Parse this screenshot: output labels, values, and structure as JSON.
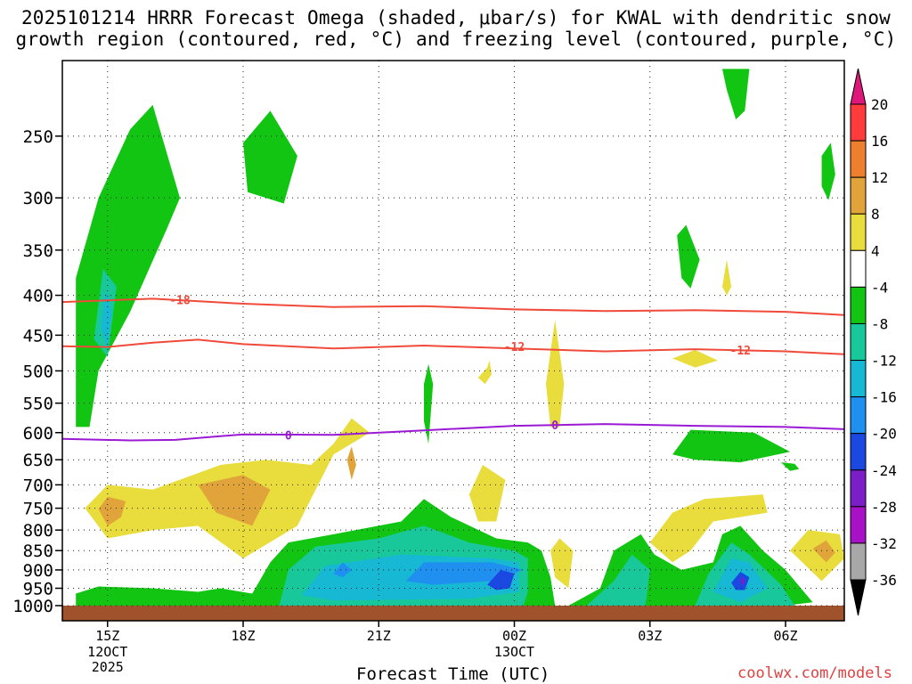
{
  "title_line1": "2025101214 HRRR Forecast Omega (shaded, μbar/s) for KWAL with dendritic snow",
  "title_line2": "growth region (contoured, red, °C) and freezing level (contoured, purple, °C)",
  "credit": "coolwx.com/models",
  "chart_data": {
    "type": "heatmap",
    "title": "2025101214 HRRR Forecast Omega (shaded, μbar/s) for KWAL with dendritic snow growth region (contoured, red, °C) and freezing level (contoured, purple, °C)",
    "xlabel": "Forecast Time (UTC)",
    "ylabel": "",
    "x_ticks": [
      {
        "label": "15Z",
        "sub": [
          "12OCT",
          "2025"
        ],
        "hour": 1
      },
      {
        "label": "18Z",
        "sub": [],
        "hour": 4
      },
      {
        "label": "21Z",
        "sub": [],
        "hour": 7
      },
      {
        "label": "00Z",
        "sub": [
          "13OCT"
        ],
        "hour": 10
      },
      {
        "label": "03Z",
        "sub": [],
        "hour": 13
      },
      {
        "label": "06Z",
        "sub": [],
        "hour": 16
      }
    ],
    "xlim": [
      0,
      17.3
    ],
    "y_ticks": [
      250,
      300,
      350,
      400,
      450,
      500,
      550,
      600,
      650,
      700,
      750,
      800,
      850,
      900,
      950,
      1000
    ],
    "ylim_hpa": [
      200,
      1000
    ],
    "y_scale": "log-pressure",
    "grid": true,
    "colorbar": {
      "labels": [
        "20",
        "16",
        "12",
        "8",
        "4",
        "-4",
        "-8",
        "-12",
        "-16",
        "-20",
        "-24",
        "-28",
        "-32",
        "-36"
      ],
      "colors": [
        "#ff3b3b",
        "#ee7f2e",
        "#e0a43b",
        "#e8dd3c",
        "#ffffff",
        "#12c512",
        "#18c89a",
        "#16b8d4",
        "#1f8ff0",
        "#1a48e0",
        "#7a1ec8",
        "#a812c6",
        "#a8a8a8"
      ],
      "top_arrow_color": "#e0177a",
      "bottom_arrow_color": "#000000"
    },
    "dendritic_isotherms": [
      {
        "value": -18,
        "label": "-18",
        "color": "#f04a3a",
        "points": [
          [
            0,
            408
          ],
          [
            1,
            406
          ],
          [
            2,
            404
          ],
          [
            4,
            410
          ],
          [
            6,
            414
          ],
          [
            8,
            413
          ],
          [
            10,
            417
          ],
          [
            12,
            419
          ],
          [
            14,
            418
          ],
          [
            16,
            420
          ],
          [
            17.3,
            424
          ]
        ]
      },
      {
        "value": -12,
        "label": "-12",
        "color": "#f04a3a",
        "points": [
          [
            0,
            465
          ],
          [
            1,
            466
          ],
          [
            2,
            460
          ],
          [
            3,
            456
          ],
          [
            4,
            462
          ],
          [
            6,
            468
          ],
          [
            8,
            464
          ],
          [
            10,
            468
          ],
          [
            12,
            472
          ],
          [
            14,
            469
          ],
          [
            16,
            472
          ],
          [
            17.3,
            476
          ]
        ]
      }
    ],
    "freezing_level": {
      "value": 0,
      "label": "0",
      "color": "#9a1ad4",
      "points": [
        [
          0,
          611
        ],
        [
          1.5,
          614
        ],
        [
          2.5,
          613
        ],
        [
          4,
          603
        ],
        [
          6,
          604
        ],
        [
          8,
          596
        ],
        [
          10,
          588
        ],
        [
          12,
          585
        ],
        [
          14,
          588
        ],
        [
          16,
          590
        ],
        [
          17.3,
          594
        ]
      ]
    },
    "omega_regions": [
      {
        "level": "-4",
        "pts": [
          [
            0.3,
            590
          ],
          [
            0.3,
            380
          ],
          [
            0.8,
            300
          ],
          [
            1.5,
            245
          ],
          [
            2,
            228
          ],
          [
            2.6,
            300
          ],
          [
            2.3,
            330
          ],
          [
            1.5,
            420
          ],
          [
            0.8,
            500
          ],
          [
            0.6,
            590
          ]
        ]
      },
      {
        "level": "-8",
        "pts": [
          [
            0.7,
            455
          ],
          [
            0.9,
            370
          ],
          [
            1.2,
            390
          ],
          [
            1.0,
            480
          ]
        ]
      },
      {
        "level": "-12",
        "pts": [
          [
            0.85,
            440
          ],
          [
            0.95,
            395
          ],
          [
            1.1,
            420
          ],
          [
            1.0,
            470
          ]
        ]
      },
      {
        "level": "-4",
        "pts": [
          [
            4,
            255
          ],
          [
            4.6,
            232
          ],
          [
            5.2,
            265
          ],
          [
            4.9,
            305
          ],
          [
            4.1,
            295
          ]
        ]
      },
      {
        "level": "-4",
        "pts": [
          [
            14.6,
            205
          ],
          [
            15.2,
            205
          ],
          [
            15.1,
            232
          ],
          [
            14.9,
            238
          ],
          [
            14.7,
            218
          ]
        ]
      },
      {
        "level": "-4",
        "pts": [
          [
            16.8,
            265
          ],
          [
            17,
            255
          ],
          [
            17.1,
            280
          ],
          [
            16.95,
            302
          ],
          [
            16.8,
            290
          ]
        ]
      },
      {
        "level": "-4",
        "pts": [
          [
            13.6,
            335
          ],
          [
            13.8,
            325
          ],
          [
            14.1,
            360
          ],
          [
            13.9,
            392
          ],
          [
            13.7,
            380
          ]
        ]
      },
      {
        "level": "-4",
        "pts": [
          [
            8.0,
            520
          ],
          [
            8.1,
            490
          ],
          [
            8.2,
            520
          ],
          [
            8.1,
            620
          ],
          [
            8.0,
            580
          ]
        ]
      },
      {
        "level": "-4",
        "pts": [
          [
            13.5,
            640
          ],
          [
            13.9,
            595
          ],
          [
            15.3,
            600
          ],
          [
            16.1,
            635
          ],
          [
            15.0,
            655
          ],
          [
            14.0,
            650
          ]
        ]
      },
      {
        "level": "-4",
        "pts": [
          [
            15.9,
            655
          ],
          [
            16.2,
            658
          ],
          [
            16.3,
            668
          ],
          [
            16.1,
            672
          ]
        ]
      },
      {
        "level": "4",
        "pts": [
          [
            0.5,
            750
          ],
          [
            1.0,
            700
          ],
          [
            2.0,
            710
          ],
          [
            3.5,
            660
          ],
          [
            4.5,
            650
          ],
          [
            5.5,
            660
          ],
          [
            6.0,
            620
          ],
          [
            6.4,
            575
          ],
          [
            6.8,
            600
          ],
          [
            6.0,
            640
          ],
          [
            5.2,
            790
          ],
          [
            4.0,
            870
          ],
          [
            3.0,
            790
          ],
          [
            2.0,
            800
          ],
          [
            1.0,
            820
          ]
        ]
      },
      {
        "level": "8",
        "pts": [
          [
            0.8,
            752
          ],
          [
            1.0,
            725
          ],
          [
            1.4,
            735
          ],
          [
            1.3,
            770
          ],
          [
            1.0,
            790
          ]
        ]
      },
      {
        "level": "8",
        "pts": [
          [
            3.0,
            700
          ],
          [
            4.0,
            680
          ],
          [
            4.6,
            710
          ],
          [
            4.2,
            790
          ],
          [
            3.4,
            760
          ]
        ]
      },
      {
        "level": "8",
        "pts": [
          [
            6.3,
            650
          ],
          [
            6.4,
            625
          ],
          [
            6.5,
            660
          ],
          [
            6.4,
            690
          ]
        ]
      },
      {
        "level": "4",
        "pts": [
          [
            9.0,
            720
          ],
          [
            9.3,
            660
          ],
          [
            9.8,
            690
          ],
          [
            9.6,
            780
          ],
          [
            9.2,
            780
          ]
        ]
      },
      {
        "level": "4",
        "pts": [
          [
            9.2,
            510
          ],
          [
            9.4,
            495
          ],
          [
            9.45,
            485
          ],
          [
            9.5,
            505
          ],
          [
            9.35,
            520
          ]
        ]
      },
      {
        "level": "4",
        "pts": [
          [
            10.7,
            520
          ],
          [
            10.9,
            430
          ],
          [
            11.1,
            520
          ],
          [
            11.0,
            590
          ],
          [
            10.8,
            590
          ]
        ]
      },
      {
        "level": "4",
        "pts": [
          [
            10.8,
            850
          ],
          [
            11.0,
            820
          ],
          [
            11.3,
            850
          ],
          [
            11.2,
            950
          ],
          [
            10.9,
            920
          ]
        ]
      },
      {
        "level": "4",
        "pts": [
          [
            13.0,
            830
          ],
          [
            13.5,
            760
          ],
          [
            14.2,
            730
          ],
          [
            15.5,
            720
          ],
          [
            15.6,
            760
          ],
          [
            14.4,
            780
          ],
          [
            13.9,
            850
          ],
          [
            13.5,
            880
          ]
        ]
      },
      {
        "level": "4",
        "pts": [
          [
            13.5,
            482
          ],
          [
            14.0,
            470
          ],
          [
            14.5,
            485
          ],
          [
            14.0,
            495
          ]
        ]
      },
      {
        "level": "4",
        "pts": [
          [
            14.6,
            390
          ],
          [
            14.7,
            360
          ],
          [
            14.8,
            390
          ],
          [
            14.7,
            400
          ]
        ]
      },
      {
        "level": "4",
        "pts": [
          [
            16.1,
            850
          ],
          [
            16.5,
            800
          ],
          [
            17.2,
            810
          ],
          [
            17.3,
            870
          ],
          [
            16.8,
            930
          ]
        ]
      },
      {
        "level": "8",
        "pts": [
          [
            16.6,
            845
          ],
          [
            16.9,
            825
          ],
          [
            17.1,
            855
          ],
          [
            16.9,
            880
          ]
        ]
      },
      {
        "level": "-4",
        "pts": [
          [
            0.3,
            965
          ],
          [
            0.8,
            945
          ],
          [
            2.0,
            950
          ],
          [
            3.0,
            960
          ],
          [
            3.5,
            950
          ],
          [
            4.2,
            965
          ],
          [
            4.6,
            880
          ],
          [
            5.0,
            830
          ],
          [
            6.0,
            810
          ],
          [
            7.5,
            780
          ],
          [
            8.0,
            730
          ],
          [
            8.6,
            770
          ],
          [
            9.6,
            820
          ],
          [
            10.3,
            830
          ],
          [
            10.6,
            850
          ],
          [
            10.8,
            920
          ],
          [
            10.9,
            1000
          ],
          [
            0.3,
            1000
          ]
        ]
      },
      {
        "level": "-8",
        "pts": [
          [
            4.8,
            1000
          ],
          [
            5.0,
            900
          ],
          [
            5.6,
            840
          ],
          [
            7.0,
            820
          ],
          [
            8.0,
            790
          ],
          [
            9.0,
            830
          ],
          [
            10.0,
            850
          ],
          [
            10.3,
            870
          ],
          [
            10.3,
            960
          ],
          [
            10.2,
            1000
          ]
        ]
      },
      {
        "level": "-12",
        "pts": [
          [
            5.3,
            970
          ],
          [
            5.8,
            890
          ],
          [
            7.5,
            860
          ],
          [
            9.5,
            870
          ],
          [
            10.1,
            880
          ],
          [
            10.1,
            960
          ],
          [
            9.0,
            980
          ],
          [
            6.0,
            985
          ]
        ]
      },
      {
        "level": "-16",
        "pts": [
          [
            7.6,
            930
          ],
          [
            8.0,
            880
          ],
          [
            9.5,
            880
          ],
          [
            10.2,
            900
          ],
          [
            9.5,
            930
          ],
          [
            8.2,
            940
          ]
        ]
      },
      {
        "level": "-20",
        "pts": [
          [
            9.4,
            940
          ],
          [
            9.7,
            900
          ],
          [
            10.0,
            910
          ],
          [
            9.9,
            950
          ],
          [
            9.6,
            955
          ]
        ]
      },
      {
        "level": "-16",
        "pts": [
          [
            6.0,
            910
          ],
          [
            6.2,
            880
          ],
          [
            6.4,
            900
          ],
          [
            6.2,
            920
          ]
        ]
      },
      {
        "level": "-4",
        "pts": [
          [
            11.2,
            1000
          ],
          [
            11.9,
            950
          ],
          [
            12.2,
            850
          ],
          [
            12.8,
            810
          ],
          [
            13.1,
            860
          ],
          [
            13.7,
            900
          ],
          [
            14.4,
            880
          ],
          [
            14.6,
            810
          ],
          [
            15.0,
            790
          ],
          [
            15.5,
            850
          ],
          [
            16.0,
            900
          ],
          [
            16.6,
            990
          ],
          [
            16.0,
            1000
          ]
        ]
      },
      {
        "level": "-8",
        "pts": [
          [
            11.6,
            1000
          ],
          [
            12.2,
            930
          ],
          [
            12.6,
            860
          ],
          [
            13.0,
            900
          ],
          [
            12.9,
            1000
          ]
        ]
      },
      {
        "level": "-8",
        "pts": [
          [
            14.0,
            1000
          ],
          [
            14.3,
            910
          ],
          [
            14.8,
            830
          ],
          [
            15.2,
            860
          ],
          [
            15.9,
            940
          ],
          [
            16.2,
            1000
          ]
        ]
      },
      {
        "level": "-12",
        "pts": [
          [
            14.4,
            960
          ],
          [
            14.8,
            870
          ],
          [
            15.2,
            880
          ],
          [
            15.6,
            950
          ],
          [
            15.0,
            990
          ]
        ]
      },
      {
        "level": "-20",
        "pts": [
          [
            14.8,
            935
          ],
          [
            15.0,
            905
          ],
          [
            15.2,
            920
          ],
          [
            15.1,
            955
          ],
          [
            14.9,
            955
          ]
        ]
      },
      {
        "level": "-24",
        "pts": [
          [
            15.0,
            930
          ],
          [
            15.05,
            918
          ],
          [
            15.1,
            932
          ],
          [
            15.05,
            942
          ]
        ]
      }
    ]
  }
}
